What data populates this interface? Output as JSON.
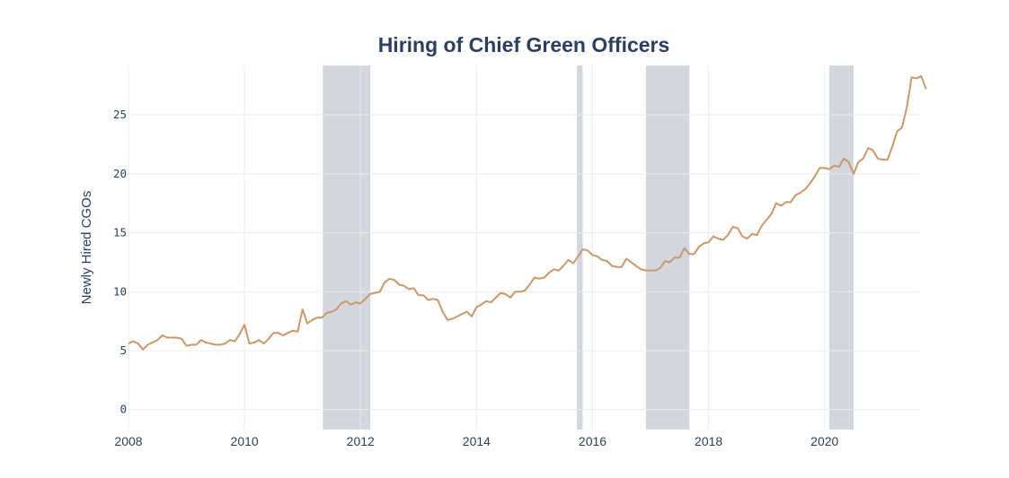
{
  "chart_data": {
    "type": "line",
    "title": "Hiring of Chief Green Officers",
    "xlabel": "",
    "ylabel": "Newly Hired CGOs",
    "xlim": [
      2008.0,
      2021.63
    ],
    "ylim": [
      -1.7,
      29.2
    ],
    "grid": true,
    "x_ticks": [
      2008,
      2010,
      2012,
      2014,
      2016,
      2018,
      2020
    ],
    "y_ticks": [
      0,
      5,
      10,
      15,
      20,
      25
    ],
    "colors": {
      "line": "#c9996b",
      "shade": "#d3d7dd",
      "grid": "#ececec",
      "text": "#2d3f5e"
    },
    "shaded_regions": [
      {
        "start": 2011.35,
        "end": 2012.17
      },
      {
        "start": 2015.73,
        "end": 2015.83
      },
      {
        "start": 2016.92,
        "end": 2017.67
      },
      {
        "start": 2020.08,
        "end": 2020.5
      }
    ],
    "series": [
      {
        "x_start": 2008.0,
        "x_step": 0.08333,
        "values": [
          5.6,
          5.8,
          5.6,
          5.1,
          5.5,
          5.7,
          5.9,
          6.3,
          6.1,
          6.1,
          6.1,
          6.0,
          5.4,
          5.5,
          5.5,
          5.9,
          5.7,
          5.6,
          5.5,
          5.5,
          5.6,
          5.9,
          5.8,
          6.4,
          7.2,
          5.6,
          5.7,
          5.9,
          5.6,
          6.0,
          6.5,
          6.5,
          6.3,
          6.5,
          6.7,
          6.6,
          8.5,
          7.3,
          7.6,
          7.8,
          7.8,
          8.2,
          8.3,
          8.5,
          9.0,
          9.2,
          8.9,
          9.1,
          9.0,
          9.4,
          9.8,
          9.9,
          10.0,
          10.8,
          11.1,
          11.0,
          10.6,
          10.5,
          10.2,
          10.3,
          9.7,
          9.7,
          9.3,
          9.4,
          9.3,
          8.3,
          7.6,
          7.7,
          7.9,
          8.1,
          8.3,
          7.9,
          8.7,
          8.9,
          9.2,
          9.1,
          9.5,
          9.9,
          9.8,
          9.5,
          10.0,
          10.0,
          10.1,
          10.6,
          11.2,
          11.1,
          11.2,
          11.6,
          11.9,
          11.8,
          12.2,
          12.7,
          12.4,
          13.0,
          13.6,
          13.5,
          13.1,
          13.0,
          12.7,
          12.6,
          12.2,
          12.1,
          12.1,
          12.8,
          12.5,
          12.2,
          11.9,
          11.8,
          11.8,
          11.8,
          12.0,
          12.6,
          12.5,
          12.9,
          12.9,
          13.7,
          13.2,
          13.2,
          13.8,
          14.1,
          14.2,
          14.7,
          14.5,
          14.4,
          14.8,
          15.5,
          15.4,
          14.7,
          14.5,
          14.9,
          14.8,
          15.6,
          16.1,
          16.6,
          17.5,
          17.3,
          17.6,
          17.6,
          18.2,
          18.4,
          18.7,
          19.2,
          19.8,
          20.5,
          20.5,
          20.4,
          20.7,
          20.6,
          21.3,
          21.0,
          20.0,
          21.0,
          21.3,
          22.2,
          22.0,
          21.3,
          21.2,
          21.2,
          22.3,
          23.6,
          23.9,
          25.6,
          28.2,
          28.1,
          28.3,
          27.2
        ]
      }
    ]
  }
}
